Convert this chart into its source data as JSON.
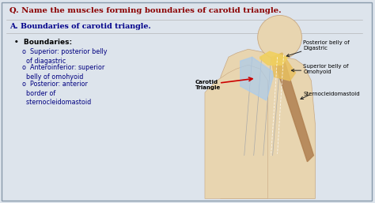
{
  "bg_color": "#dde4ec",
  "title": "Q. Name the muscles forming boundaries of carotid triangle.",
  "title_color": "#8B0000",
  "title_fontsize": 7.2,
  "answer_header": "A. Boundaries of carotid triangle.",
  "answer_color": "#00008B",
  "answer_fontsize": 6.8,
  "bullet_header": "Boundaries:",
  "bullet_header_fontsize": 6.5,
  "bullets": [
    "Superior: posterior belly\n  of diagastric",
    "Anteroinferior: superior\n  belly of omohyoid",
    "Posterior: anterior\n  border of\n  sternocleidomastoid"
  ],
  "bullet_fontsize": 5.8,
  "label_carotid": "Carotid\nTriangle",
  "label_posterior": "Posterior belly of\nDigastric",
  "label_superior": "Superior belly of\nOmohyoid",
  "label_sterno": "Sternocleidomastoid",
  "label_fontsize": 5.0,
  "skin_color": "#e8d5b0",
  "skin_edge": "#c8a882",
  "scm_color": "#b08050",
  "triangle_color": "#aaccee",
  "omo_color": "#e8c060",
  "dig_color": "#f0d060",
  "arrow_red": "#cc0000",
  "arrow_black": "#222222"
}
